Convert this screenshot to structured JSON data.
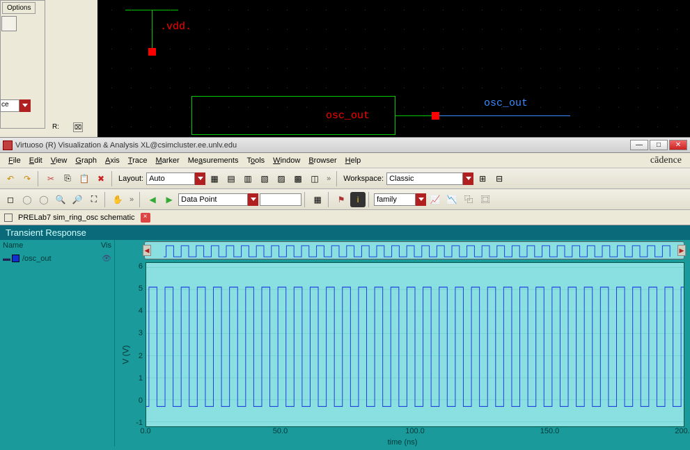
{
  "top": {
    "options_label": "Options",
    "combo_value": "ce",
    "r_label": "R:"
  },
  "schematic": {
    "vdd_label": ".vdd.",
    "osc_out_red": "osc_out",
    "osc_out_blue": "osc_out",
    "bg": "#000000",
    "wire_green": "#00cc00",
    "wire_blue": "#3a8aff",
    "text_red": "#ff0000",
    "pin_red": "#ff0000"
  },
  "window": {
    "title": "Virtuoso (R) Visualization & Analysis XL@csimcluster.ee.unlv.edu"
  },
  "menu": {
    "items": [
      "File",
      "Edit",
      "View",
      "Graph",
      "Axis",
      "Trace",
      "Marker",
      "Measurements",
      "Tools",
      "Window",
      "Browser",
      "Help"
    ],
    "brand": "cādence"
  },
  "toolbar1": {
    "layout_label": "Layout:",
    "layout_value": "Auto",
    "workspace_label": "Workspace:",
    "workspace_value": "Classic"
  },
  "toolbar2": {
    "datapoint_label": "Data Point",
    "family_value": "family"
  },
  "tab": {
    "label": "PRELab7 sim_ring_osc schematic"
  },
  "plot": {
    "title": "Transient Response",
    "list_header_name": "Name",
    "list_header_vis": "Vis",
    "signal_name": "/osc_out",
    "signal_color": "#1030d0",
    "bg_teal": "#1a9a9a",
    "bg_light": "#8ae0e0",
    "trace_color": "#2040e0",
    "y_label": "V (V)",
    "y_ticks": [
      -1,
      0,
      1,
      2,
      3,
      4,
      5,
      6
    ],
    "ylim": [
      -1.2,
      6.2
    ],
    "x_label": "time (ns)",
    "x_ticks": [
      0.0,
      50.0,
      100.0,
      150.0,
      200.0
    ],
    "xlim": [
      0,
      200
    ],
    "period_ps": 6.0,
    "low_v": -0.3,
    "high_v": 5.1
  }
}
